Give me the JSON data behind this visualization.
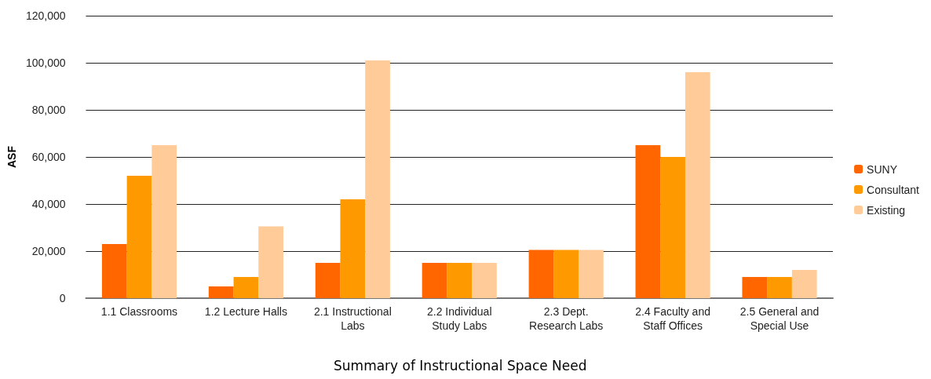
{
  "chart_data": {
    "type": "bar",
    "title": "Summary of Instructional Space Need",
    "ylabel": "ASF",
    "categories": [
      "1.1 Classrooms",
      "1.2 Lecture Halls",
      "2.1 Instructional\nLabs",
      "2.2 Individual\nStudy Labs",
      "2.3 Dept.\nResearch Labs",
      "2.4 Faculty and\nStaff Offices",
      "2.5 General and\nSpecial Use"
    ],
    "series": [
      {
        "name": "SUNY",
        "color": "#ff6600",
        "values": [
          23000,
          5000,
          15000,
          15000,
          20500,
          65000,
          9000
        ]
      },
      {
        "name": "Consultant",
        "color": "#ff9900",
        "values": [
          52000,
          9000,
          42000,
          15000,
          20500,
          60000,
          9000
        ]
      },
      {
        "name": "Existing",
        "color": "#ffcc99",
        "values": [
          65000,
          30500,
          101000,
          15000,
          20500,
          96000,
          12000
        ]
      }
    ],
    "ylim": [
      0,
      120000
    ],
    "yticks": [
      0,
      {
        "value": 20000,
        "label": "20,000"
      },
      {
        "value": 40000,
        "label": "40,000"
      },
      {
        "value": 60000,
        "label": "60,000"
      },
      {
        "value": 80000,
        "label": "80,000"
      },
      {
        "value": 100000,
        "label": "100,000"
      },
      {
        "value": 120000,
        "label": "120,000"
      }
    ],
    "grid": "y",
    "legend": "right"
  }
}
